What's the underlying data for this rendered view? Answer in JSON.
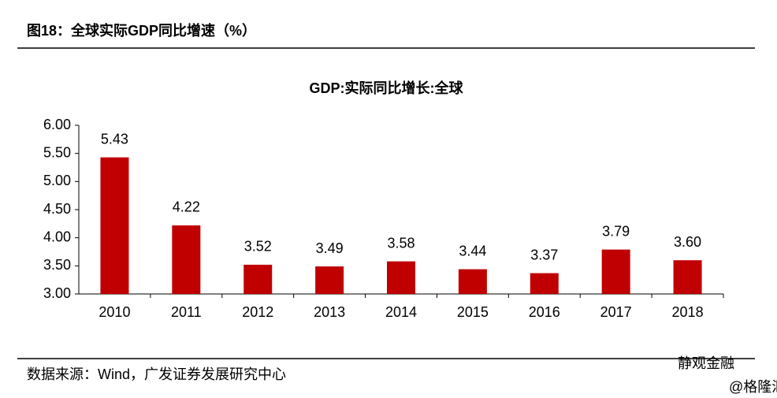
{
  "header": {
    "title": "图18：全球实际GDP同比增速（%）"
  },
  "chart_data": {
    "type": "bar",
    "title": "GDP:实际同比增长:全球",
    "categories": [
      "2010",
      "2011",
      "2012",
      "2013",
      "2014",
      "2015",
      "2016",
      "2017",
      "2018"
    ],
    "values": [
      5.43,
      4.22,
      3.52,
      3.49,
      3.58,
      3.44,
      3.37,
      3.79,
      3.6
    ],
    "value_labels": [
      "5.43",
      "4.22",
      "3.52",
      "3.49",
      "3.58",
      "3.44",
      "3.37",
      "3.79",
      "3.60"
    ],
    "color": "#c00000",
    "ylim": [
      3,
      6
    ],
    "yticks": [
      {
        "value": 3,
        "label": "3.00"
      },
      {
        "value": 3.5,
        "label": "3.50"
      },
      {
        "value": 4,
        "label": "4.00"
      },
      {
        "value": 4.5,
        "label": "4.50"
      },
      {
        "value": 5,
        "label": "5.00"
      },
      {
        "value": 5.5,
        "label": "5.50"
      },
      {
        "value": 6,
        "label": "6.00"
      }
    ],
    "grid": false
  },
  "source": "数据来源：Wind，广发证券发展研究中心",
  "watermark": {
    "brand": "静观金融",
    "site": "@格隆汇"
  }
}
